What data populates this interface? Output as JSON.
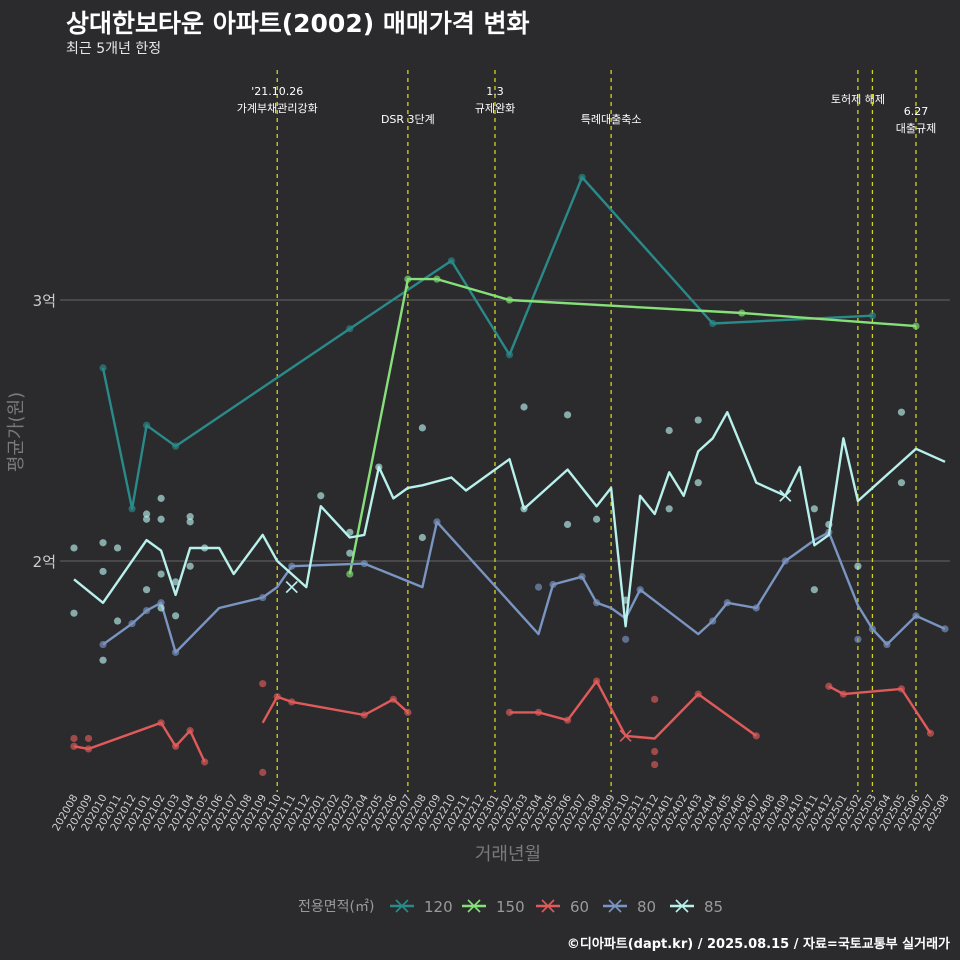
{
  "title": "상대한보타운 아파트(2002) 매매가격 변화",
  "subtitle": "최근 5개년 한정",
  "caption": "©디아파트(dapt.kr) / 2025.08.15 / 자료=국토교통부 실거래가",
  "colors": {
    "background": "#2b2b2d",
    "gridline": "#666666",
    "event_line": "#d4d419",
    "120": "#2a8a8a",
    "150": "#86e07a",
    "60": "#e05a5a",
    "80": "#7a95c2",
    "85": "#b8f0ec"
  },
  "chart_data": {
    "type": "line",
    "xlabel": "거래년월",
    "ylabel": "평균가(원)",
    "ylim": [
      9500,
      35500
    ],
    "y_ticks": [
      {
        "value": 20000,
        "label": "2억"
      },
      {
        "value": 30000,
        "label": "3억"
      }
    ],
    "grid": true,
    "legend": {
      "title": "전용면적(㎡)",
      "position": "bottom"
    },
    "categories": [
      "202008",
      "202009",
      "202010",
      "202011",
      "202012",
      "202101",
      "202102",
      "202103",
      "202104",
      "202105",
      "202106",
      "202107",
      "202108",
      "202109",
      "202110",
      "202111",
      "202112",
      "202201",
      "202202",
      "202203",
      "202204",
      "202205",
      "202206",
      "202207",
      "202208",
      "202209",
      "202210",
      "202211",
      "202212",
      "202301",
      "202302",
      "202303",
      "202304",
      "202305",
      "202306",
      "202307",
      "202308",
      "202309",
      "202310",
      "202311",
      "202312",
      "202401",
      "202402",
      "202403",
      "202404",
      "202405",
      "202406",
      "202407",
      "202408",
      "202409",
      "202410",
      "202411",
      "202412",
      "202501",
      "202502",
      "202503",
      "202504",
      "202505",
      "202506",
      "202507",
      "202508"
    ],
    "events": [
      {
        "month": "202110",
        "label": "'21.10.26\n가계부채관리강화"
      },
      {
        "month": "202207",
        "label": "DSR 3단계"
      },
      {
        "month": "202301",
        "label": "1.3\n규제완화"
      },
      {
        "month": "202309",
        "label": "특례대출축소"
      },
      {
        "month": "202502",
        "label": "토허제 해제"
      },
      {
        "month": "202503",
        "label": ""
      },
      {
        "month": "202506",
        "label": "6.27\n대출규제"
      }
    ],
    "series": [
      {
        "name": "120",
        "line": [
          [
            "202010",
            27400
          ],
          [
            "202012",
            22000
          ],
          [
            "202101",
            25200
          ],
          [
            "202103",
            24400
          ],
          [
            "202203",
            28900
          ],
          [
            "202210",
            31500
          ],
          [
            "202302",
            27900
          ],
          [
            "202307",
            34700
          ],
          [
            "202404",
            29100
          ],
          [
            "202503",
            29400
          ]
        ],
        "points": [
          [
            "202010",
            27400
          ],
          [
            "202012",
            22000
          ],
          [
            "202101",
            25200
          ],
          [
            "202103",
            24400
          ],
          [
            "202203",
            28900
          ],
          [
            "202210",
            31500
          ],
          [
            "202302",
            27900
          ],
          [
            "202307",
            34700
          ],
          [
            "202404",
            29100
          ],
          [
            "202503",
            29400
          ]
        ],
        "cross": []
      },
      {
        "name": "150",
        "line": [
          [
            "202203",
            19500
          ],
          [
            "202207",
            30800
          ],
          [
            "202209",
            30800
          ],
          [
            "202302",
            30000
          ],
          [
            "202406",
            29500
          ],
          [
            "202506",
            29000
          ]
        ],
        "points": [
          [
            "202203",
            19500
          ],
          [
            "202207",
            30800
          ],
          [
            "202209",
            30800
          ],
          [
            "202302",
            30000
          ],
          [
            "202406",
            29500
          ],
          [
            "202506",
            29000
          ]
        ],
        "cross": []
      },
      {
        "name": "60",
        "line": [
          [
            "202109",
            13800
          ],
          [
            "202110",
            14800
          ],
          [
            "202111",
            14600
          ],
          [
            "202204",
            14100
          ],
          [
            "202206",
            14700
          ],
          [
            "202207",
            14200
          ]
        ],
        "line2": [
          [
            "202008",
            12900
          ],
          [
            "202009",
            12800
          ],
          [
            "202102",
            13800
          ],
          [
            "202103",
            12900
          ],
          [
            "202104",
            13500
          ],
          [
            "202105",
            12300
          ]
        ],
        "line3": [
          [
            "202302",
            14200
          ],
          [
            "202304",
            14200
          ],
          [
            "202306",
            13900
          ],
          [
            "202308",
            15400
          ],
          [
            "202310",
            13300
          ],
          [
            "202312",
            13200
          ],
          [
            "202403",
            14900
          ],
          [
            "202407",
            13300
          ]
        ],
        "line4": [
          [
            "202412",
            15200
          ],
          [
            "202501",
            14900
          ],
          [
            "202505",
            15100
          ],
          [
            "202507",
            13400
          ]
        ],
        "points": [
          [
            "202008",
            12900
          ],
          [
            "202008",
            13200
          ],
          [
            "202009",
            13200
          ],
          [
            "202009",
            12800
          ],
          [
            "202102",
            13800
          ],
          [
            "202103",
            12900
          ],
          [
            "202104",
            13500
          ],
          [
            "202105",
            12300
          ],
          [
            "202109",
            15300
          ],
          [
            "202109",
            11900
          ],
          [
            "202110",
            14800
          ],
          [
            "202111",
            14600
          ],
          [
            "202204",
            14100
          ],
          [
            "202206",
            14700
          ],
          [
            "202207",
            14200
          ],
          [
            "202302",
            14200
          ],
          [
            "202304",
            14200
          ],
          [
            "202306",
            13900
          ],
          [
            "202308",
            15400
          ],
          [
            "202312",
            14700
          ],
          [
            "202312",
            12700
          ],
          [
            "202312",
            12200
          ],
          [
            "202403",
            14900
          ],
          [
            "202407",
            13300
          ],
          [
            "202412",
            15200
          ],
          [
            "202501",
            14900
          ],
          [
            "202505",
            15100
          ],
          [
            "202507",
            13400
          ]
        ],
        "cross": [
          [
            "202310",
            13300
          ]
        ]
      },
      {
        "name": "80",
        "line": [
          [
            "202010",
            16800
          ],
          [
            "202012",
            17600
          ],
          [
            "202101",
            18100
          ],
          [
            "202102",
            18400
          ],
          [
            "202103",
            16500
          ],
          [
            "202106",
            18200
          ],
          [
            "202109",
            18600
          ],
          [
            "202110",
            19000
          ],
          [
            "202111",
            19800
          ],
          [
            "202204",
            19900
          ],
          [
            "202208",
            19000
          ],
          [
            "202209",
            21500
          ],
          [
            "202304",
            17200
          ],
          [
            "202305",
            19100
          ],
          [
            "202307",
            19400
          ],
          [
            "202308",
            18400
          ],
          [
            "202309",
            18200
          ],
          [
            "202310",
            17800
          ],
          [
            "202311",
            18900
          ],
          [
            "202403",
            17200
          ],
          [
            "202404",
            17700
          ],
          [
            "202405",
            18400
          ],
          [
            "202407",
            18200
          ],
          [
            "202409",
            20000
          ],
          [
            "202411",
            20800
          ],
          [
            "202412",
            21100
          ],
          [
            "202502",
            18300
          ],
          [
            "202503",
            17400
          ],
          [
            "202504",
            16800
          ],
          [
            "202506",
            17900
          ],
          [
            "202508",
            17400
          ]
        ],
        "points": [
          [
            "202010",
            16800
          ],
          [
            "202012",
            17600
          ],
          [
            "202101",
            18100
          ],
          [
            "202102",
            18400
          ],
          [
            "202103",
            16500
          ],
          [
            "202109",
            18600
          ],
          [
            "202111",
            19800
          ],
          [
            "202204",
            19900
          ],
          [
            "202209",
            21500
          ],
          [
            "202304",
            19000
          ],
          [
            "202305",
            19100
          ],
          [
            "202307",
            19400
          ],
          [
            "202308",
            18400
          ],
          [
            "202310",
            17000
          ],
          [
            "202311",
            18900
          ],
          [
            "202404",
            17700
          ],
          [
            "202405",
            18400
          ],
          [
            "202407",
            18200
          ],
          [
            "202409",
            20000
          ],
          [
            "202412",
            21100
          ],
          [
            "202502",
            17000
          ],
          [
            "202503",
            17400
          ],
          [
            "202504",
            16800
          ],
          [
            "202506",
            17900
          ],
          [
            "202508",
            17400
          ]
        ],
        "cross": [
          [
            "202111",
            19000
          ]
        ]
      },
      {
        "name": "85",
        "line": [
          [
            "202008",
            19300
          ],
          [
            "202010",
            18400
          ],
          [
            "202101",
            20800
          ],
          [
            "202102",
            20400
          ],
          [
            "202103",
            18700
          ],
          [
            "202104",
            20500
          ],
          [
            "202106",
            20500
          ],
          [
            "202107",
            19500
          ],
          [
            "202109",
            21000
          ],
          [
            "202110",
            20000
          ],
          [
            "202112",
            19000
          ],
          [
            "202201",
            22100
          ],
          [
            "202203",
            20900
          ],
          [
            "202204",
            21000
          ],
          [
            "202205",
            23600
          ],
          [
            "202206",
            22400
          ],
          [
            "202207",
            22800
          ],
          [
            "202208",
            22900
          ],
          [
            "202210",
            23200
          ],
          [
            "202211",
            22700
          ],
          [
            "202302",
            23900
          ],
          [
            "202303",
            22000
          ],
          [
            "202306",
            23500
          ],
          [
            "202308",
            22100
          ],
          [
            "202309",
            22800
          ],
          [
            "202310",
            17500
          ],
          [
            "202311",
            22500
          ],
          [
            "202312",
            21800
          ],
          [
            "202401",
            23400
          ],
          [
            "202402",
            22500
          ],
          [
            "202403",
            24200
          ],
          [
            "202404",
            24700
          ],
          [
            "202405",
            25700
          ],
          [
            "202407",
            23000
          ],
          [
            "202409",
            22500
          ],
          [
            "202410",
            23600
          ],
          [
            "202411",
            20600
          ],
          [
            "202412",
            21000
          ],
          [
            "202501",
            24700
          ],
          [
            "202502",
            22300
          ],
          [
            "202506",
            24300
          ],
          [
            "202508",
            23800
          ]
        ],
        "points": [
          [
            "202008",
            20500
          ],
          [
            "202008",
            18000
          ],
          [
            "202010",
            20700
          ],
          [
            "202010",
            19600
          ],
          [
            "202010",
            16200
          ],
          [
            "202011",
            20500
          ],
          [
            "202011",
            17700
          ],
          [
            "202101",
            21800
          ],
          [
            "202101",
            21600
          ],
          [
            "202101",
            18900
          ],
          [
            "202102",
            22400
          ],
          [
            "202102",
            21600
          ],
          [
            "202102",
            19500
          ],
          [
            "202102",
            18200
          ],
          [
            "202103",
            19200
          ],
          [
            "202103",
            17900
          ],
          [
            "202104",
            21700
          ],
          [
            "202104",
            21500
          ],
          [
            "202104",
            19800
          ],
          [
            "202105",
            20500
          ],
          [
            "202201",
            22500
          ],
          [
            "202203",
            21100
          ],
          [
            "202203",
            20300
          ],
          [
            "202205",
            23600
          ],
          [
            "202208",
            20900
          ],
          [
            "202208",
            25100
          ],
          [
            "202303",
            22000
          ],
          [
            "202303",
            25900
          ],
          [
            "202306",
            25600
          ],
          [
            "202306",
            21400
          ],
          [
            "202308",
            21600
          ],
          [
            "202310",
            18500
          ],
          [
            "202401",
            25000
          ],
          [
            "202401",
            22000
          ],
          [
            "202403",
            25400
          ],
          [
            "202403",
            23000
          ],
          [
            "202411",
            22000
          ],
          [
            "202411",
            18900
          ],
          [
            "202412",
            21400
          ],
          [
            "202502",
            19800
          ],
          [
            "202505",
            25700
          ],
          [
            "202505",
            23000
          ]
        ],
        "cross": [
          [
            "202111",
            19000
          ],
          [
            "202409",
            22500
          ]
        ]
      }
    ]
  }
}
